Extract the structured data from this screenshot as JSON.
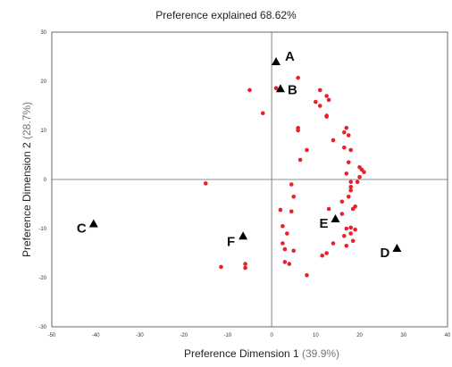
{
  "chart_data": {
    "type": "scatter",
    "title": {
      "prefix": "Preference explained",
      "value": "68.62%"
    },
    "xlabel": {
      "text": "Preference Dimension 1",
      "pct": "(39.9%)"
    },
    "ylabel": {
      "text": "Preference Dimension 2",
      "pct": "(28.7%)"
    },
    "xlim": [
      -50,
      40
    ],
    "ylim": [
      -30,
      30
    ],
    "x_ticks": [
      "-50",
      "-40",
      "-30",
      "-20",
      "-10",
      "0",
      "10",
      "20",
      "30",
      "40"
    ],
    "y_ticks": [
      "30",
      "20",
      "10",
      "0",
      "-10",
      "-20",
      "-30"
    ],
    "x_tick_values": [
      -50,
      -40,
      -30,
      -20,
      -10,
      0,
      10,
      20,
      30,
      40
    ],
    "y_tick_values": [
      30,
      20,
      10,
      0,
      -10,
      -20,
      -30
    ],
    "grid": false,
    "zero_lines": true,
    "series": [
      {
        "marker": "triangle",
        "color": "#000000",
        "points": [
          {
            "label": "A",
            "x": 1,
            "y": 24
          },
          {
            "label": "B",
            "x": 2,
            "y": 18.5
          },
          {
            "label": "C",
            "x": -40.5,
            "y": -9
          },
          {
            "label": "D",
            "x": 28.5,
            "y": -14
          },
          {
            "label": "E",
            "x": 14.5,
            "y": -8
          },
          {
            "label": "F",
            "x": -6.5,
            "y": -11.5
          }
        ]
      },
      {
        "marker": "circle",
        "color": "#e8202a",
        "points": [
          [
            6,
            20.7
          ],
          [
            -5,
            18.2
          ],
          [
            1,
            18.6
          ],
          [
            -2,
            13.5
          ],
          [
            11,
            18.2
          ],
          [
            12.5,
            17
          ],
          [
            13,
            16.2
          ],
          [
            10,
            15.8
          ],
          [
            11,
            15
          ],
          [
            12.5,
            13
          ],
          [
            12.5,
            12.8
          ],
          [
            6,
            10.5
          ],
          [
            6,
            10
          ],
          [
            17,
            10.5
          ],
          [
            16.5,
            9.6
          ],
          [
            17.5,
            9
          ],
          [
            14,
            8
          ],
          [
            8,
            6
          ],
          [
            16.5,
            6.5
          ],
          [
            18,
            6
          ],
          [
            6.5,
            4
          ],
          [
            17.5,
            3.5
          ],
          [
            20,
            2.5
          ],
          [
            20.5,
            2
          ],
          [
            21,
            1.5
          ],
          [
            20,
            0.5
          ],
          [
            17,
            1.2
          ],
          [
            19.5,
            -0.5
          ],
          [
            18,
            -0.5
          ],
          [
            18,
            -1.5
          ],
          [
            4.5,
            -1
          ],
          [
            18,
            -2.2
          ],
          [
            5,
            -3.5
          ],
          [
            17.5,
            -3.5
          ],
          [
            16,
            -4.5
          ],
          [
            -15,
            -0.8
          ],
          [
            19,
            -5.5
          ],
          [
            18.5,
            -6
          ],
          [
            2,
            -6.2
          ],
          [
            4.5,
            -6.5
          ],
          [
            13,
            -6
          ],
          [
            16,
            -7
          ],
          [
            2.5,
            -9.5
          ],
          [
            17,
            -10
          ],
          [
            18,
            -9.8
          ],
          [
            19,
            -10.2
          ],
          [
            18,
            -11
          ],
          [
            3.5,
            -11
          ],
          [
            16.5,
            -11.5
          ],
          [
            18.5,
            -12.5
          ],
          [
            2.5,
            -13
          ],
          [
            14,
            -13
          ],
          [
            17,
            -13.5
          ],
          [
            3,
            -14.2
          ],
          [
            5,
            -14.5
          ],
          [
            12.5,
            -15
          ],
          [
            11.5,
            -15.5
          ],
          [
            3,
            -16.8
          ],
          [
            4,
            -17.2
          ],
          [
            -6,
            -17.2
          ],
          [
            -11.5,
            -17.8
          ],
          [
            -6,
            -18
          ],
          [
            8,
            -19.5
          ]
        ]
      }
    ]
  }
}
